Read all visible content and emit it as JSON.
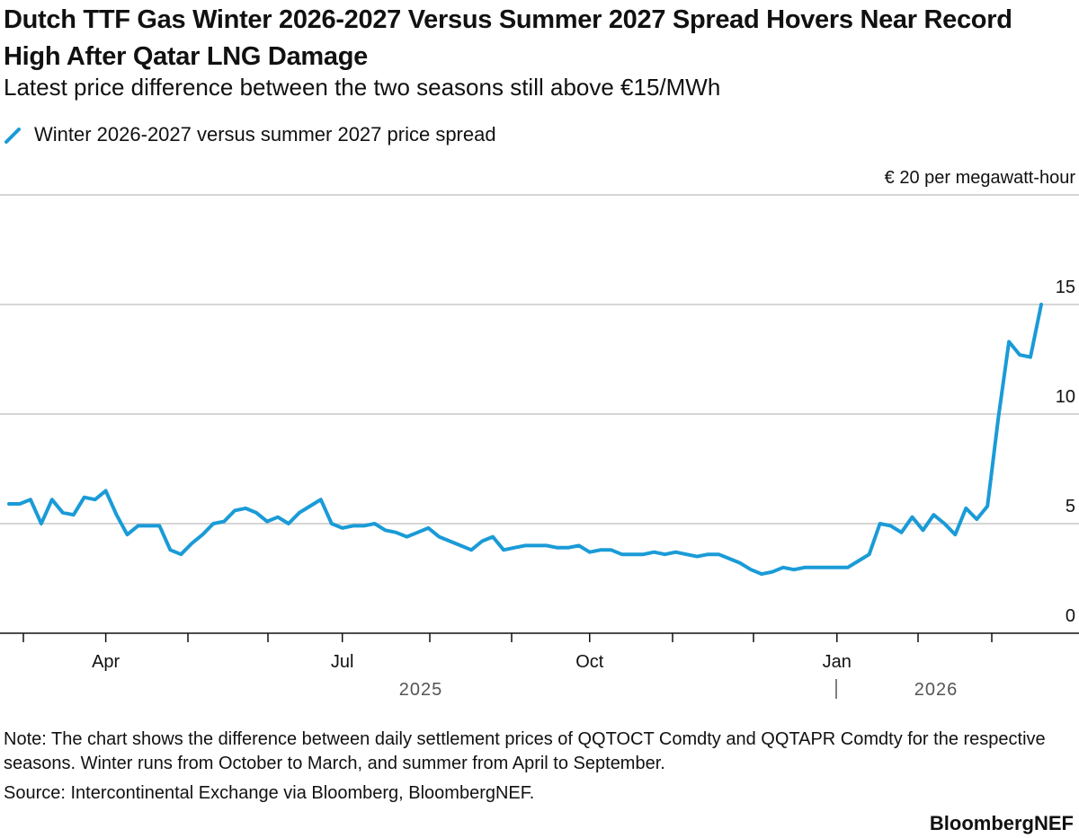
{
  "chart_data": {
    "type": "line",
    "title": "Dutch TTF Gas Winter 2026-2027 Versus Summer 2027 Spread Hovers Near Record High After Qatar LNG Damage",
    "subtitle": "Latest price difference between the two seasons still above €15/MWh",
    "categories": [
      null,
      null,
      null,
      null,
      null,
      null,
      null,
      null,
      null,
      "Apr",
      null,
      null,
      null,
      null,
      null,
      null,
      null,
      null,
      null,
      null,
      null,
      null,
      null,
      null,
      null,
      null,
      null,
      null,
      null,
      null,
      null,
      "Jul",
      null,
      null,
      null,
      null,
      null,
      null,
      null,
      null,
      null,
      null,
      null,
      null,
      null,
      null,
      null,
      null,
      null,
      null,
      null,
      null,
      null,
      null,
      "Oct",
      null,
      null,
      null,
      null,
      null,
      null,
      null,
      null,
      null,
      null,
      null,
      null,
      null,
      null,
      null,
      null,
      null,
      null,
      null,
      null,
      null,
      null,
      "Jan",
      null,
      null,
      null,
      null,
      null,
      null,
      null,
      null,
      null,
      null,
      null,
      null,
      null,
      null,
      null,
      null,
      null,
      null,
      null
    ],
    "year_labels": [
      "2025",
      "2026"
    ],
    "series": [
      {
        "name": "Winter 2026-2027 versus summer 2027 price spread",
        "color": "#1a9bd7",
        "values": [
          5.9,
          5.9,
          6.1,
          5.0,
          6.1,
          5.5,
          5.4,
          6.2,
          6.1,
          6.5,
          5.4,
          4.5,
          4.9,
          4.9,
          4.9,
          3.8,
          3.6,
          4.1,
          4.5,
          5.0,
          5.1,
          5.6,
          5.7,
          5.5,
          5.1,
          5.3,
          5.0,
          5.5,
          5.8,
          6.1,
          5.0,
          4.8,
          4.9,
          4.9,
          5.0,
          4.7,
          4.6,
          4.4,
          4.6,
          4.8,
          4.4,
          4.2,
          4.0,
          3.8,
          4.2,
          4.4,
          3.8,
          3.9,
          4.0,
          4.0,
          4.0,
          3.9,
          3.9,
          4.0,
          3.7,
          3.8,
          3.8,
          3.6,
          3.6,
          3.6,
          3.7,
          3.6,
          3.7,
          3.6,
          3.5,
          3.6,
          3.6,
          3.4,
          3.2,
          2.9,
          2.7,
          2.8,
          3.0,
          2.9,
          3.0,
          3.0,
          3.0,
          3.0,
          3.0,
          3.3,
          3.6,
          5.0,
          4.9,
          4.6,
          5.3,
          4.7,
          5.4,
          5.0,
          4.5,
          5.7,
          5.2,
          5.8,
          9.8,
          13.3,
          12.7,
          12.6,
          15.0
        ]
      }
    ],
    "ylim": [
      0,
      20
    ],
    "yticks": [
      0,
      5,
      10,
      15,
      {
        "value": 20,
        "label": "€ 20 per megawatt-hour"
      }
    ],
    "grid": true,
    "note": "Note: The chart shows the difference between daily settlement prices of QQTOCT Comdty and QQTAPR Comdty for the respective seasons. Winter runs from October to March, and summer from April to September.",
    "source": "Source: Intercontinental Exchange via Bloomberg, BloombergNEF.",
    "brand": "BloombergNEF"
  }
}
